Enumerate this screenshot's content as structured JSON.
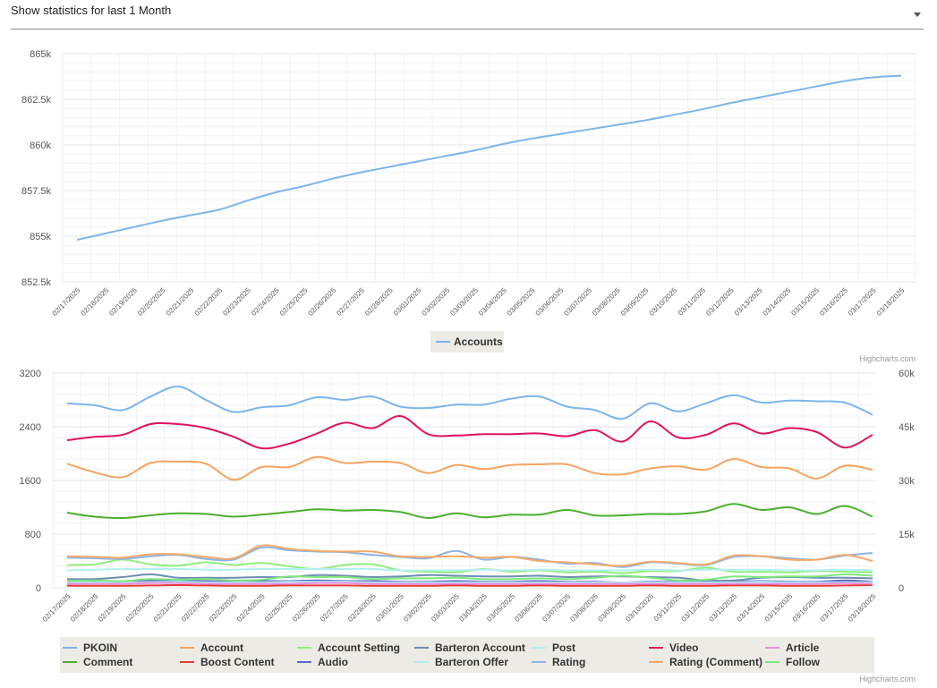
{
  "selector": {
    "label": "Show statistics for last 1 Month"
  },
  "credits": "Highcharts.com",
  "chart_data": [
    {
      "type": "line",
      "x": [
        "02/17/2025",
        "02/18/2025",
        "02/19/2025",
        "02/20/2025",
        "02/21/2025",
        "02/22/2025",
        "02/23/2025",
        "02/24/2025",
        "02/25/2025",
        "02/26/2025",
        "02/27/2025",
        "02/28/2025",
        "03/01/2025",
        "03/02/2025",
        "03/03/2025",
        "03/04/2025",
        "03/05/2025",
        "03/06/2025",
        "03/07/2025",
        "03/08/2025",
        "03/09/2025",
        "03/10/2025",
        "03/11/2025",
        "03/12/2025",
        "03/13/2025",
        "03/14/2025",
        "03/15/2025",
        "03/16/2025",
        "03/17/2025",
        "03/18/2025"
      ],
      "yticks": [
        "852.5k",
        "855k",
        "857.5k",
        "860k",
        "862.5k",
        "865k"
      ],
      "ylim": [
        852500,
        865000
      ],
      "grid": true,
      "legend_position": "bottom-center",
      "series": [
        {
          "name": "Accounts",
          "color": "#7cb5ec",
          "values": [
            854800,
            855150,
            855500,
            855850,
            856150,
            856450,
            856950,
            857400,
            857750,
            858150,
            858500,
            858800,
            859100,
            859400,
            859700,
            860050,
            860350,
            860600,
            860850,
            861100,
            861350,
            861650,
            861950,
            862300,
            862600,
            862900,
            863200,
            863500,
            863700,
            863800
          ]
        }
      ]
    },
    {
      "type": "line",
      "x": [
        "02/17/2025",
        "02/18/2025",
        "02/19/2025",
        "02/20/2025",
        "02/21/2025",
        "02/22/2025",
        "02/23/2025",
        "02/24/2025",
        "02/25/2025",
        "02/26/2025",
        "02/27/2025",
        "02/28/2025",
        "03/01/2025",
        "03/02/2025",
        "03/03/2025",
        "03/04/2025",
        "03/05/2025",
        "03/06/2025",
        "03/07/2025",
        "03/08/2025",
        "03/09/2025",
        "03/10/2025",
        "03/11/2025",
        "03/12/2025",
        "03/13/2025",
        "03/14/2025",
        "03/15/2025",
        "03/16/2025",
        "03/17/2025",
        "03/18/2025"
      ],
      "yticks_left": [
        "0",
        "800",
        "1600",
        "2400",
        "3200"
      ],
      "yticks_right": [
        "0",
        "15k",
        "30k",
        "45k",
        "60k"
      ],
      "ylim_left": [
        0,
        3200
      ],
      "ylim_right": [
        0,
        60000
      ],
      "grid": true,
      "legend_position": "bottom-center",
      "series": [
        {
          "name": "PKOIN",
          "color": "#7cb5ec",
          "values": [
            2750,
            2720,
            2650,
            2850,
            3000,
            2800,
            2620,
            2690,
            2720,
            2840,
            2800,
            2850,
            2700,
            2680,
            2730,
            2730,
            2820,
            2850,
            2700,
            2650,
            2520,
            2750,
            2630,
            2750,
            2870,
            2760,
            2790,
            2780,
            2760,
            2580
          ]
        },
        {
          "name": "Comment",
          "color": "#4caf2f",
          "values": [
            1120,
            1060,
            1040,
            1080,
            1110,
            1100,
            1060,
            1090,
            1130,
            1170,
            1150,
            1160,
            1130,
            1040,
            1110,
            1050,
            1090,
            1090,
            1160,
            1080,
            1080,
            1100,
            1100,
            1140,
            1250,
            1160,
            1200,
            1100,
            1220,
            1060
          ]
        },
        {
          "name": "Account",
          "color": "#f4a460",
          "values": [
            1850,
            1720,
            1650,
            1860,
            1880,
            1850,
            1610,
            1800,
            1800,
            1950,
            1860,
            1880,
            1860,
            1710,
            1830,
            1770,
            1830,
            1840,
            1840,
            1710,
            1690,
            1780,
            1810,
            1760,
            1920,
            1800,
            1780,
            1630,
            1820,
            1760
          ]
        },
        {
          "name": "Boost Content",
          "color": "#e53935",
          "values": [
            30,
            30,
            30,
            35,
            40,
            35,
            30,
            30,
            35,
            35,
            35,
            30,
            30,
            30,
            35,
            30,
            30,
            35,
            30,
            30,
            30,
            35,
            30,
            30,
            35,
            35,
            30,
            30,
            35,
            40
          ]
        },
        {
          "name": "Account Setting",
          "color": "#90ee7e",
          "values": [
            340,
            350,
            420,
            350,
            330,
            380,
            340,
            370,
            320,
            280,
            340,
            350,
            260,
            240,
            230,
            280,
            240,
            260,
            230,
            240,
            220,
            250,
            250,
            300,
            240,
            240,
            230,
            250,
            240,
            230
          ]
        },
        {
          "name": "Audio",
          "color": "#5c6bc0",
          "values": [
            90,
            90,
            100,
            110,
            110,
            100,
            90,
            100,
            100,
            110,
            100,
            100,
            90,
            90,
            100,
            90,
            90,
            100,
            90,
            90,
            80,
            90,
            90,
            90,
            90,
            100,
            90,
            90,
            110,
            90
          ]
        },
        {
          "name": "Barteron Account",
          "color": "#6d8fb3",
          "values": [
            130,
            130,
            160,
            200,
            150,
            150,
            150,
            160,
            160,
            190,
            180,
            160,
            170,
            190,
            180,
            170,
            170,
            180,
            160,
            170,
            170,
            160,
            150,
            110,
            110,
            150,
            160,
            150,
            150,
            140
          ]
        },
        {
          "name": "Barteron Offer",
          "color": "#b2ebf2",
          "values": [
            80,
            80,
            80,
            80,
            90,
            80,
            80,
            80,
            90,
            90,
            90,
            80,
            80,
            80,
            80,
            80,
            80,
            80,
            80,
            80,
            80,
            80,
            80,
            80,
            80,
            90,
            80,
            80,
            80,
            80
          ]
        },
        {
          "name": "Post",
          "color": "#b2f0f0",
          "values": [
            260,
            270,
            280,
            280,
            280,
            270,
            270,
            280,
            280,
            280,
            280,
            280,
            260,
            260,
            260,
            270,
            260,
            270,
            260,
            260,
            260,
            270,
            260,
            270,
            270,
            270,
            260,
            260,
            270,
            260
          ]
        },
        {
          "name": "Rating",
          "color": "#8db4e2",
          "values": [
            450,
            440,
            430,
            470,
            490,
            430,
            420,
            600,
            560,
            540,
            530,
            490,
            460,
            440,
            550,
            420,
            460,
            420,
            360,
            370,
            310,
            380,
            360,
            340,
            460,
            470,
            440,
            420,
            480,
            520
          ]
        },
        {
          "name": "Video",
          "color": "#e0115f",
          "values": [
            2200,
            2250,
            2280,
            2440,
            2440,
            2380,
            2250,
            2080,
            2150,
            2300,
            2460,
            2380,
            2560,
            2290,
            2270,
            2290,
            2290,
            2300,
            2260,
            2350,
            2180,
            2480,
            2240,
            2280,
            2450,
            2300,
            2380,
            2320,
            2090,
            2280
          ]
        },
        {
          "name": "Rating (Comment)",
          "color": "#f5a96a",
          "values": [
            470,
            460,
            450,
            500,
            500,
            460,
            440,
            630,
            580,
            550,
            540,
            540,
            470,
            460,
            470,
            450,
            460,
            400,
            380,
            350,
            330,
            390,
            370,
            350,
            480,
            470,
            420,
            420,
            490,
            400
          ]
        },
        {
          "name": "Article",
          "color": "#e78fe0",
          "values": [
            60,
            60,
            60,
            70,
            70,
            60,
            60,
            60,
            60,
            70,
            70,
            60,
            60,
            60,
            60,
            60,
            60,
            60,
            60,
            60,
            60,
            60,
            60,
            60,
            60,
            60,
            60,
            60,
            70,
            60
          ]
        },
        {
          "name": "Follow",
          "color": "#7ee87e",
          "values": [
            100,
            110,
            100,
            130,
            120,
            130,
            110,
            120,
            170,
            160,
            160,
            130,
            140,
            140,
            150,
            130,
            130,
            140,
            130,
            150,
            180,
            150,
            110,
            120,
            170,
            160,
            170,
            170,
            200,
            180
          ]
        }
      ]
    }
  ]
}
